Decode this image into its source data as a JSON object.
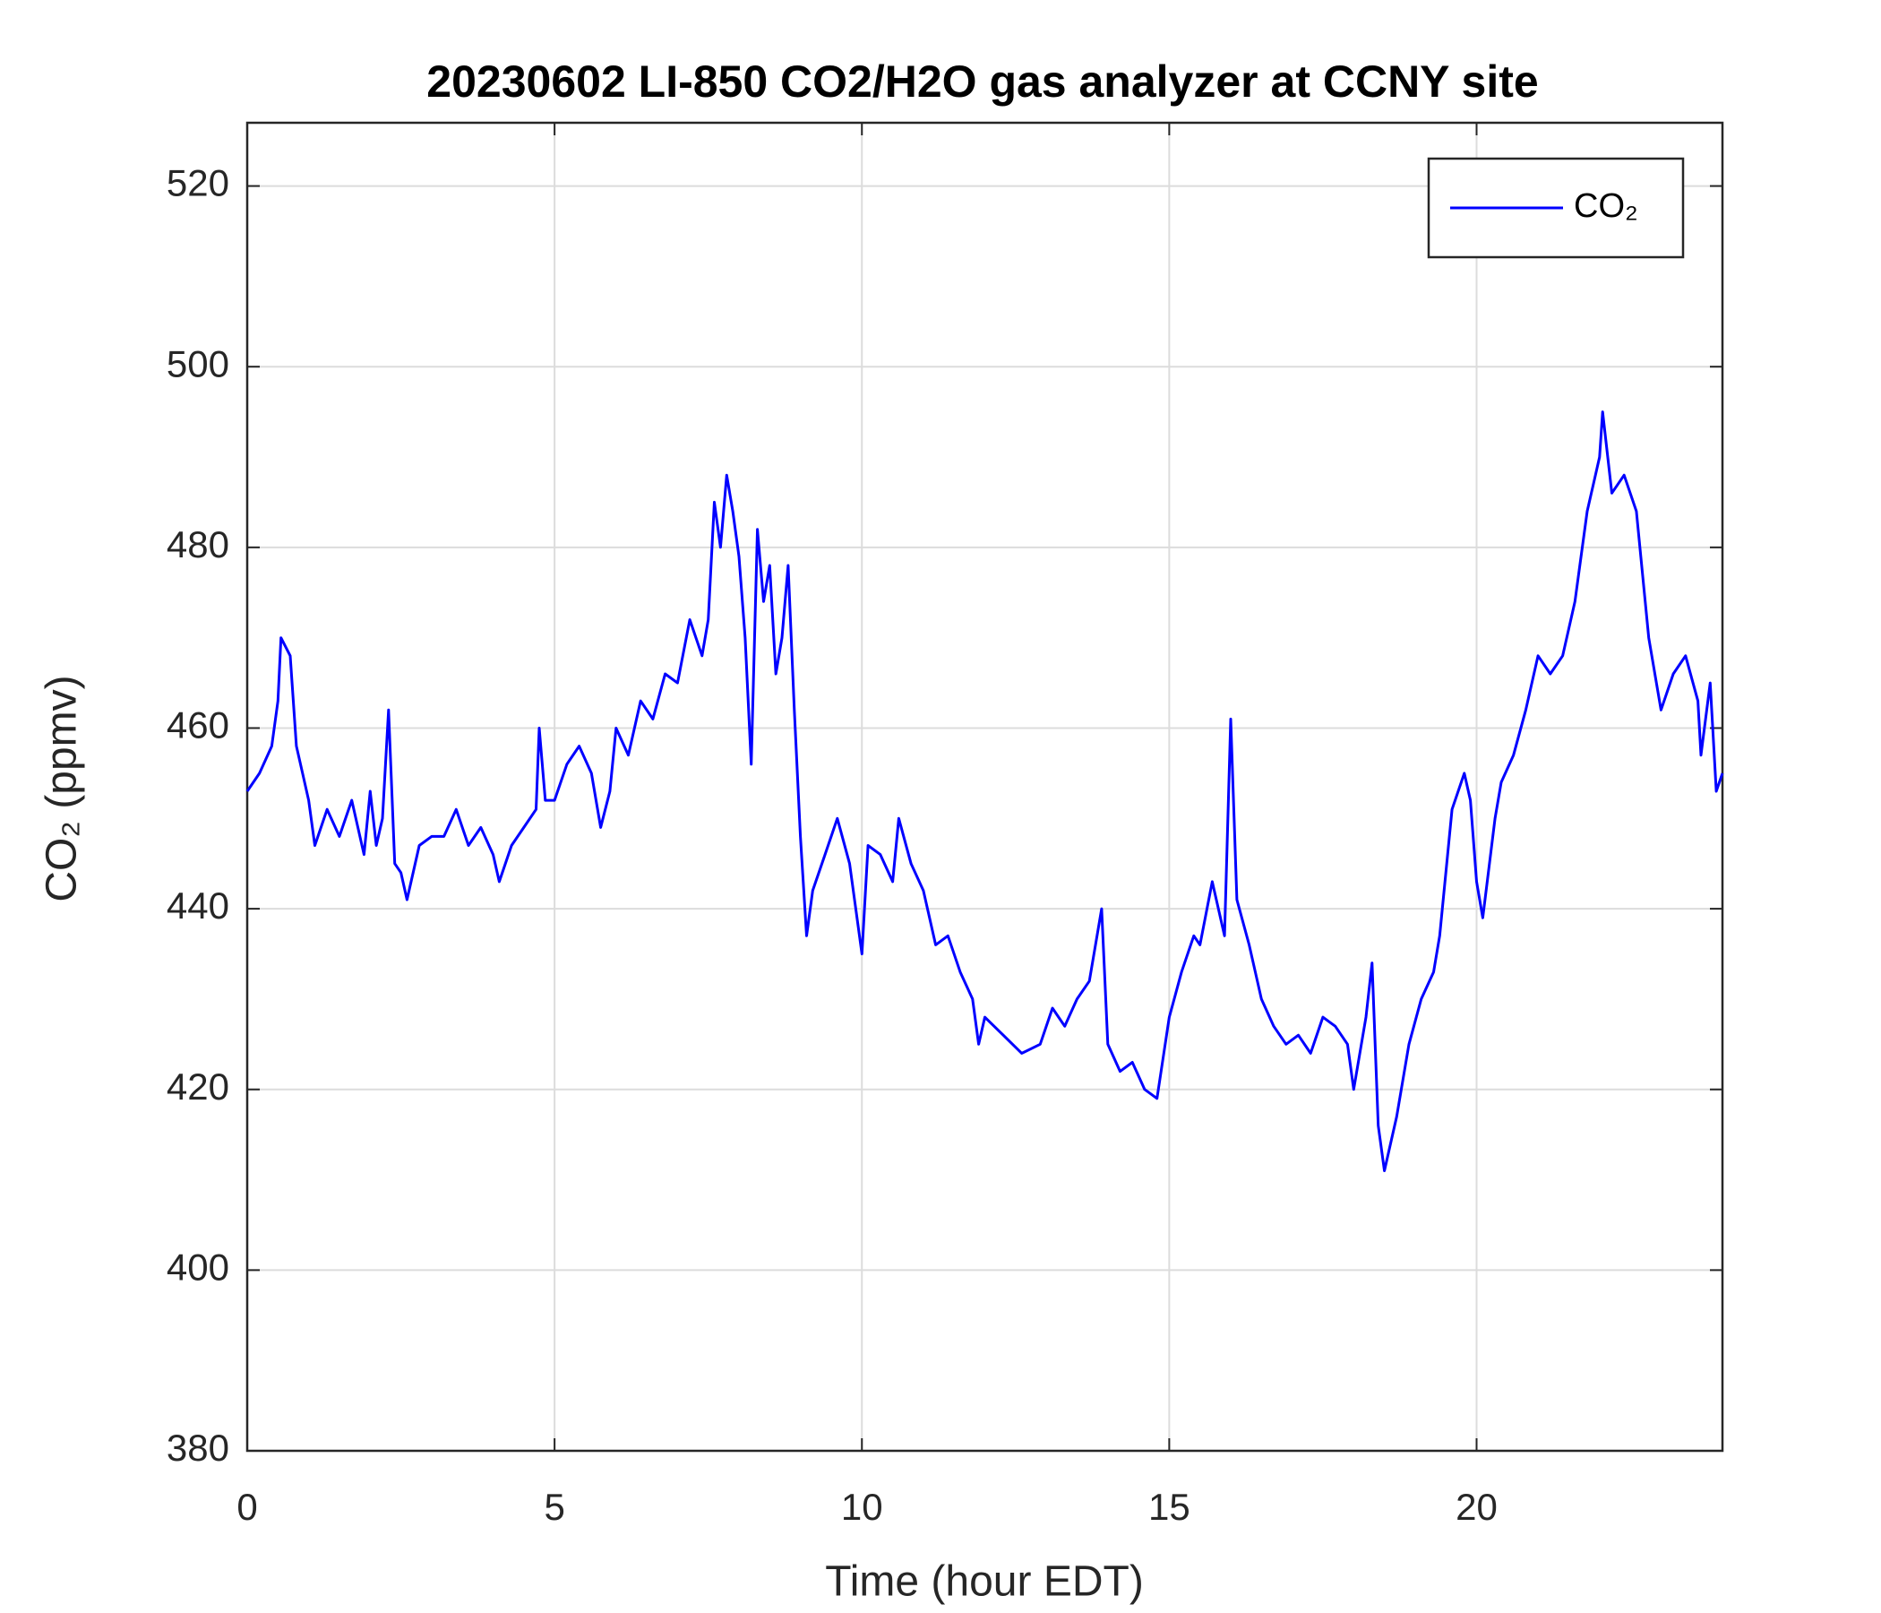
{
  "chart_data": {
    "type": "line",
    "title": "20230602 LI-850 CO2/H2O gas analyzer at CCNY site",
    "x_label": "Time (hour EDT)",
    "y_label": "CO₂ (ppmv)",
    "xlim": [
      0,
      24
    ],
    "xticks": [
      0,
      5,
      10,
      15,
      20
    ],
    "ylim": [
      380,
      527
    ],
    "yticks": [
      380,
      400,
      420,
      440,
      460,
      480,
      500,
      520
    ],
    "grid": true,
    "legend": "upper right",
    "series": [
      {
        "name": "CO₂",
        "color": "#0000ff",
        "x": [
          0,
          0.2,
          0.4,
          0.5,
          0.55,
          0.7,
          0.8,
          0.9,
          1.0,
          1.1,
          1.3,
          1.5,
          1.7,
          1.9,
          2.0,
          2.1,
          2.2,
          2.3,
          2.4,
          2.5,
          2.6,
          2.8,
          3.0,
          3.2,
          3.4,
          3.6,
          3.8,
          4.0,
          4.1,
          4.3,
          4.5,
          4.7,
          4.75,
          4.85,
          5.0,
          5.2,
          5.4,
          5.6,
          5.75,
          5.9,
          6.0,
          6.2,
          6.4,
          6.6,
          6.8,
          7.0,
          7.2,
          7.4,
          7.5,
          7.6,
          7.7,
          7.8,
          7.9,
          8.0,
          8.1,
          8.2,
          8.3,
          8.4,
          8.5,
          8.6,
          8.7,
          8.8,
          8.9,
          9.0,
          9.1,
          9.2,
          9.4,
          9.6,
          9.8,
          10.0,
          10.1,
          10.3,
          10.5,
          10.6,
          10.8,
          11.0,
          11.2,
          11.4,
          11.6,
          11.8,
          11.9,
          12.0,
          12.3,
          12.6,
          12.9,
          13.1,
          13.3,
          13.5,
          13.7,
          13.9,
          14.0,
          14.2,
          14.4,
          14.6,
          14.8,
          15.0,
          15.2,
          15.4,
          15.5,
          15.7,
          15.9,
          16.0,
          16.1,
          16.3,
          16.5,
          16.7,
          16.9,
          17.1,
          17.3,
          17.5,
          17.7,
          17.9,
          18.0,
          18.2,
          18.3,
          18.4,
          18.5,
          18.7,
          18.9,
          19.1,
          19.3,
          19.4,
          19.6,
          19.8,
          19.9,
          20.0,
          20.1,
          20.3,
          20.4,
          20.6,
          20.8,
          21.0,
          21.2,
          21.4,
          21.6,
          21.8,
          22.0,
          22.05,
          22.2,
          22.4,
          22.6,
          22.8,
          23.0,
          23.2,
          23.4,
          23.6,
          23.65,
          23.8,
          23.9,
          24.0
        ],
        "values": [
          453,
          455,
          458,
          463,
          470,
          468,
          458,
          455,
          452,
          447,
          451,
          448,
          452,
          446,
          453,
          447,
          450,
          462,
          445,
          444,
          441,
          447,
          448,
          448,
          451,
          447,
          449,
          446,
          443,
          447,
          449,
          451,
          460,
          452,
          452,
          456,
          458,
          455,
          449,
          453,
          460,
          457,
          463,
          461,
          466,
          465,
          472,
          468,
          472,
          485,
          480,
          488,
          484,
          479,
          470,
          456,
          482,
          474,
          478,
          466,
          470,
          478,
          462,
          448,
          437,
          442,
          446,
          450,
          445,
          435,
          447,
          446,
          443,
          450,
          445,
          442,
          436,
          437,
          433,
          430,
          425,
          428,
          426,
          424,
          425,
          429,
          427,
          430,
          432,
          440,
          425,
          422,
          423,
          420,
          419,
          428,
          433,
          437,
          436,
          443,
          437,
          461,
          441,
          436,
          430,
          427,
          425,
          426,
          424,
          428,
          427,
          425,
          420,
          428,
          434,
          416,
          411,
          417,
          425,
          430,
          433,
          437,
          451,
          455,
          452,
          443,
          439,
          450,
          454,
          457,
          462,
          468,
          466,
          468,
          474,
          484,
          490,
          495,
          486,
          488,
          484,
          470,
          462,
          466,
          468,
          463,
          457,
          465,
          453,
          455
        ]
      }
    ]
  }
}
